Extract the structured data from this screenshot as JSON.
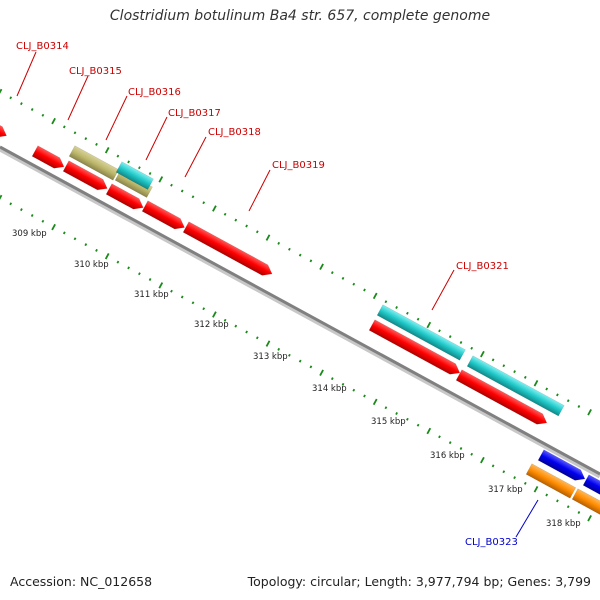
{
  "title": "Clostridium botulinum Ba4 str. 657, complete genome",
  "footer": {
    "accession": "Accession: NC_012658",
    "summary": "Topology: circular; Length: 3,977,794 bp; Genes: 3,799"
  },
  "colors": {
    "backbone": "#808080",
    "dots": "#1a8a1a",
    "red": "#ff0000",
    "khaki": "#bdb76b",
    "cyan": "#20c8c8",
    "blue": "#0000ee",
    "orange": "#ff8c00",
    "label_red": "#cc0000",
    "label_blue": "#0000cc"
  },
  "gene_labels": [
    {
      "text": "CLJ_B0314",
      "color": "red"
    },
    {
      "text": "CLJ_B0315",
      "color": "red"
    },
    {
      "text": "CLJ_B0316",
      "color": "red"
    },
    {
      "text": "CLJ_B0317",
      "color": "red"
    },
    {
      "text": "CLJ_B0318",
      "color": "red"
    },
    {
      "text": "CLJ_B0319",
      "color": "red"
    },
    {
      "text": "CLJ_B0321",
      "color": "red"
    },
    {
      "text": "CLJ_B0323",
      "color": "blue"
    }
  ],
  "scale_labels": [
    "309 kbp",
    "310 kbp",
    "311 kbp",
    "312 kbp",
    "313 kbp",
    "314 kbp",
    "315 kbp",
    "316 kbp",
    "317 kbp",
    "318 kbp"
  ]
}
